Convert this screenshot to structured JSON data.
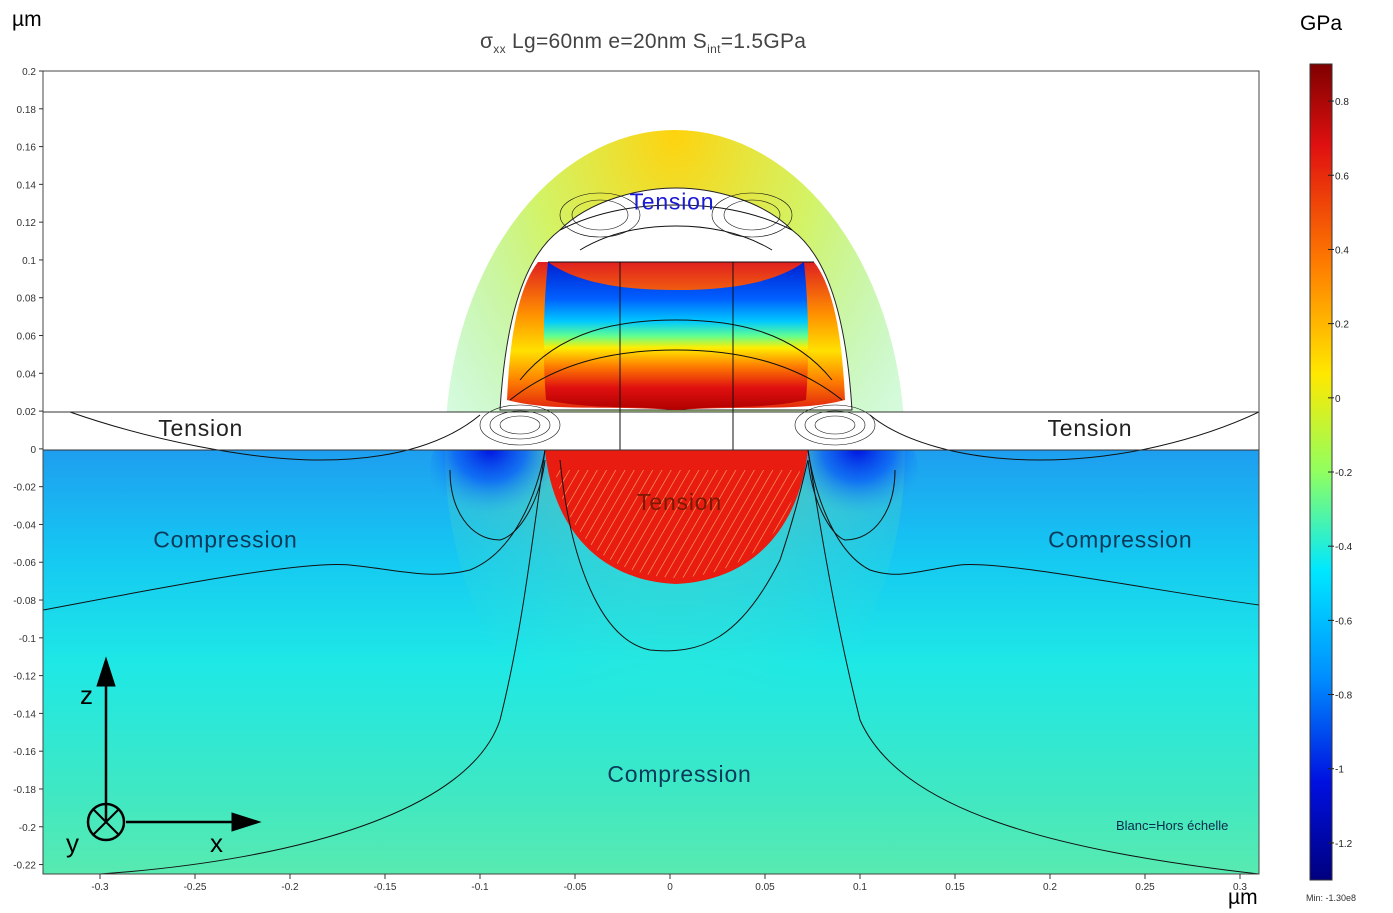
{
  "units": {
    "y": "µm",
    "colorbar": "GPa",
    "x": "µm"
  },
  "title": {
    "sigma": "σ",
    "sigma_sub": "xx",
    "part1": " Lg=60nm e=20nm S",
    "s_sub": "int",
    "part2": "=1.5GPa"
  },
  "axis_labels": {
    "z": "z",
    "x": "x",
    "y": "y"
  },
  "note": "Blanc=Hors échelle",
  "colorbar_min": "Min: -1.30e8",
  "colors": {
    "dark_red": "#7f0000",
    "red": "#e31a1c",
    "yellow": "#ffef00",
    "cyan": "#00e5ff",
    "blue": "#0030ff",
    "dark_blue": "#00007f"
  },
  "chart_data": {
    "type": "heatmap",
    "title": "σxx Lg=60nm e=20nm Sint=1.5GPa",
    "xlim": [
      -0.33,
      0.31
    ],
    "ylim": [
      -0.225,
      0.2
    ],
    "x_ticks": [
      "-0.3",
      "-0.25",
      "-0.2",
      "-0.15",
      "-0.1",
      "-0.05",
      "0",
      "0.05",
      "0.1",
      "0.15",
      "0.2",
      "0.25",
      "0.3"
    ],
    "x_tick_values": [
      -0.3,
      -0.25,
      -0.2,
      -0.15,
      -0.1,
      -0.05,
      0,
      0.05,
      0.1,
      0.15,
      0.2,
      0.25,
      0.3
    ],
    "y_ticks": [
      "0.2",
      "0.18",
      "0.16",
      "0.14",
      "0.12",
      "0.1",
      "0.08",
      "0.06",
      "0.04",
      "0.02",
      "0",
      "-0.02",
      "-0.04",
      "-0.06",
      "-0.08",
      "-0.1",
      "-0.12",
      "-0.14",
      "-0.16",
      "-0.18",
      "-0.2",
      "-0.22"
    ],
    "y_tick_values": [
      0.2,
      0.18,
      0.16,
      0.14,
      0.12,
      0.1,
      0.08,
      0.06,
      0.04,
      0.02,
      0,
      -0.02,
      -0.04,
      -0.06,
      -0.08,
      -0.1,
      -0.12,
      -0.14,
      -0.16,
      -0.18,
      -0.2,
      -0.22
    ],
    "colorbar": {
      "range": [
        -1.3,
        0.9
      ],
      "ticks": [
        "0.8",
        "0.6",
        "0.4",
        "0.2",
        "0",
        "-0.2",
        "-0.4",
        "-0.6",
        "-0.8",
        "-1",
        "-1.2"
      ],
      "tick_values": [
        0.8,
        0.6,
        0.4,
        0.2,
        0,
        -0.2,
        -0.4,
        -0.6,
        -0.8,
        -1,
        -1.2
      ]
    },
    "annotations": [
      {
        "text": "Tension",
        "x": 0.001,
        "y": 0.131,
        "color": "#1a1ad6"
      },
      {
        "text": "Tension",
        "x": -0.247,
        "y": 0.011,
        "color": "#222222"
      },
      {
        "text": "Tension",
        "x": 0.221,
        "y": 0.011,
        "color": "#222222"
      },
      {
        "text": "Tension",
        "x": 0.005,
        "y": -0.028,
        "color": "#7a1a00"
      },
      {
        "text": "Compression",
        "x": -0.234,
        "y": -0.048,
        "color": "#0a3a5a"
      },
      {
        "text": "Compression",
        "x": 0.237,
        "y": -0.048,
        "color": "#0a3a5a"
      },
      {
        "text": "Compression",
        "x": 0.005,
        "y": -0.172,
        "color": "#0a3a5a"
      }
    ]
  }
}
